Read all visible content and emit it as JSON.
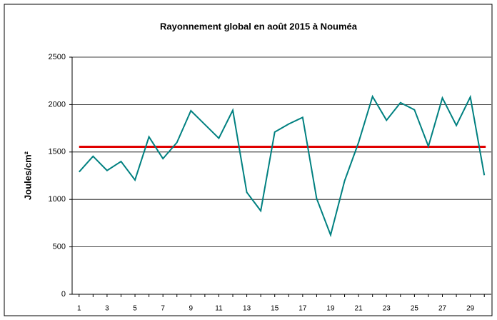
{
  "chart_data": {
    "type": "line",
    "title": "Rayonnement global en août 2015 à Nouméa",
    "y_label": "Joules/cm²",
    "categories": [
      "1",
      null,
      "3",
      null,
      "5",
      null,
      "7",
      null,
      "9",
      null,
      "11",
      null,
      "13",
      null,
      "15",
      null,
      "17",
      null,
      "19",
      null,
      "21",
      null,
      "23",
      null,
      "25",
      null,
      "27",
      null,
      "29",
      null
    ],
    "series": [
      {
        "color": "#008080",
        "values": [
          1290,
          1455,
          1305,
          1400,
          1205,
          1660,
          1430,
          1600,
          1935,
          1790,
          1645,
          1940,
          1075,
          880,
          1710,
          1795,
          1865,
          1010,
          625,
          1195,
          1600,
          2085,
          1835,
          2020,
          1945,
          1560,
          2070,
          1780,
          2080,
          1255
        ]
      }
    ],
    "reference_line": {
      "value": 1555,
      "color": "#e00000"
    },
    "ylim": [
      0,
      2500
    ],
    "yticks": [
      0,
      500,
      1000,
      1500,
      2000,
      2500
    ],
    "grid": true
  }
}
